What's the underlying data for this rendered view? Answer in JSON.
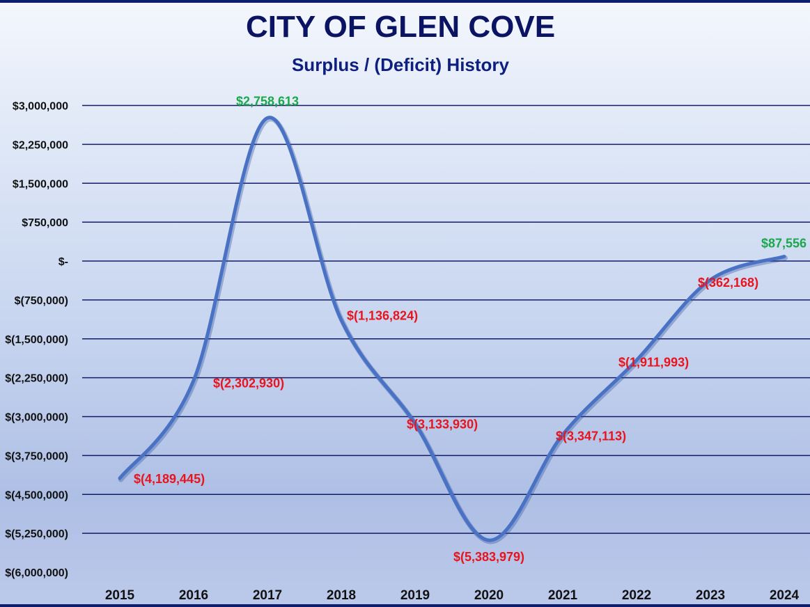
{
  "header": {
    "title": "CITY OF GLEN COVE",
    "subtitle": "Surplus / (Deficit) History"
  },
  "chart_data": {
    "type": "line",
    "title": "CITY OF GLEN COVE",
    "subtitle": "Surplus / (Deficit) History",
    "xlabel": "",
    "ylabel": "",
    "categories": [
      "2015",
      "2016",
      "2017",
      "2018",
      "2019",
      "2020",
      "2021",
      "2022",
      "2023",
      "2024"
    ],
    "series": [
      {
        "values": [
          -4189445,
          -2302930,
          2758613,
          -1136824,
          -3133930,
          -5383979,
          -3347113,
          -1911993,
          -362168,
          87556
        ],
        "data_labels": [
          "$(4,189,445)",
          "$(2,302,930)",
          "$2,758,613",
          "$(1,136,824)",
          "$(3,133,930)",
          "$(5,383,979)",
          "$(3,347,113)",
          "$(1,911,993)",
          "$(362,168)",
          "$87,556"
        ]
      }
    ],
    "ylim": [
      -6000000,
      3000000
    ],
    "yticks": [
      3000000,
      2250000,
      1500000,
      750000,
      0,
      -750000,
      -1500000,
      -2250000,
      -3000000,
      -3750000,
      -4500000,
      -5250000,
      -6000000
    ],
    "ytick_labels": [
      "$3,000,000",
      "$2,250,000",
      "$1,500,000",
      "$750,000",
      "$-",
      "$(750,000)",
      "$(1,500,000)",
      "$(2,250,000)",
      "$(3,000,000)",
      "$(3,750,000)",
      "$(4,500,000)",
      "$(5,250,000)",
      "$(6,000,000)"
    ],
    "grid": true,
    "legend": "none",
    "colors": {
      "line": "#4a72c4",
      "positive_label": "#1aa84b",
      "negative_label": "#e8141e",
      "gridline": "#141b66",
      "axis_text": "#111111",
      "title": "#0b1463"
    }
  }
}
